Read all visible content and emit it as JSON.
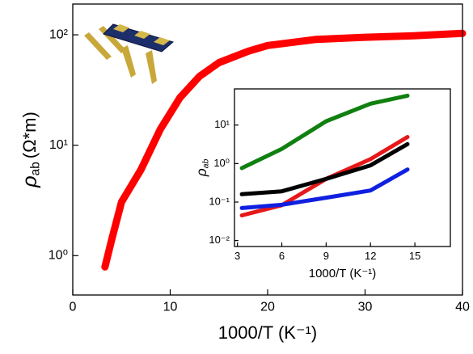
{
  "chart_data": [
    {
      "type": "line",
      "yscale": "log",
      "xlabel": "1000/T (K⁻¹)",
      "ylabel": {
        "symbol": "ρ",
        "subscript": "ab",
        "unit": "(Ω*m)"
      },
      "x": [
        3.3,
        4,
        5,
        7,
        9,
        11,
        13,
        15,
        18,
        20,
        25,
        30,
        35,
        40
      ],
      "series": [
        {
          "color": "#ff0000",
          "values": [
            0.79,
            1.4,
            3.06,
            6.0,
            14,
            27,
            42,
            56,
            71,
            80,
            91,
            95,
            98,
            103
          ]
        }
      ],
      "xlim": [
        0,
        40
      ],
      "xticks": [
        0,
        10,
        20,
        30,
        40
      ],
      "ylim": [
        0.44,
        190
      ],
      "yticks": [
        {
          "value": 1,
          "label": "10⁰"
        },
        {
          "value": 10,
          "label": "10¹"
        },
        {
          "value": 100,
          "label": "10²"
        }
      ]
    },
    {
      "type": "line",
      "yscale": "log",
      "xlabel": "1000/T (K⁻¹)",
      "ylabel": {
        "symbol": "ρ",
        "subscript": "ab"
      },
      "x": [
        3.3,
        6,
        9,
        12,
        14.5
      ],
      "series": [
        {
          "color": "#108010",
          "values": [
            0.76,
            2.4,
            12.6,
            36,
            58
          ]
        },
        {
          "color": "#e81818",
          "values": [
            0.045,
            0.083,
            0.4,
            1.3,
            4.9
          ]
        },
        {
          "color": "#000000",
          "values": [
            0.16,
            0.19,
            0.4,
            0.9,
            3.2
          ]
        },
        {
          "color": "#1020e0",
          "values": [
            0.07,
            0.085,
            0.13,
            0.2,
            0.7
          ]
        }
      ],
      "xlim": [
        2.8,
        17.4
      ],
      "xticks": [
        3,
        6,
        9,
        12,
        15
      ],
      "ylim": [
        0.007,
        87
      ],
      "yticks": [
        {
          "value": 0.01,
          "label": "10⁻²"
        },
        {
          "value": 0.1,
          "label": "10⁻¹"
        },
        {
          "value": 1,
          "label": "10⁰"
        },
        {
          "value": 10,
          "label": "10¹"
        }
      ]
    }
  ]
}
